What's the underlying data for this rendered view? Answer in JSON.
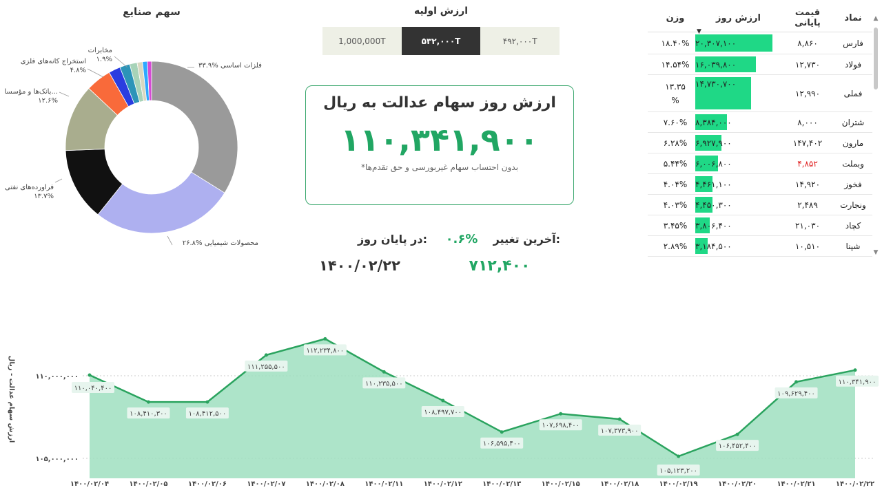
{
  "donut": {
    "title": "سهم صنایع",
    "labels": [
      {
        "pct": "۳۳.۹%",
        "name": "فلزات اساسی"
      },
      {
        "pct": "۲۶.۸%",
        "name": "محصولات شیمیایی"
      },
      {
        "pct": "۱۳.۷%",
        "name": "فراورده‌های نفتی"
      },
      {
        "pct": "۱۲.۶%",
        "name": "بانک‌ها و مؤسسا..."
      },
      {
        "pct": "۴.۸%",
        "name": "استخراج کانه‌های فلزی"
      },
      {
        "pct": "۱.۹%",
        "name": "مخابرات"
      }
    ]
  },
  "initial": {
    "title": "ارزش اولیه",
    "options": [
      "1,000,000T",
      "۵۳۲,۰۰۰T",
      "۴۹۲,۰۰۰T"
    ],
    "selected_index": 1
  },
  "card": {
    "title": "ارزش روز سهام عدالت به ریال",
    "value": "۱۱۰,۳۴۱,۹۰۰",
    "note": "*بدون احتساب سهام غیربورسی و حق تقدم‌ها"
  },
  "summary": {
    "end_label": "در پایان روز:",
    "end_date": "۱۴۰۰/۰۲/۲۲",
    "change_label": "آخرین تغییر:",
    "change_pct": "۰.۶%",
    "change_value": "۷۱۲,۴۰۰"
  },
  "table": {
    "headers": {
      "symbol": "نماد",
      "price": "قیمت پایانی",
      "value": "ارزش روز",
      "weight": "وزن"
    },
    "rows": [
      {
        "symbol": "فارس",
        "price": "۸,۸۶۰",
        "value": "۲۰,۳۰۷,۱۰۰",
        "weight": "۱۸.۴۰%",
        "ratio": 1.0,
        "price_down": false
      },
      {
        "symbol": "فولاد",
        "price": "۱۲,۷۳۰",
        "value": "۱۶,۰۳۹,۸۰۰",
        "weight": "۱۴.۵۴%",
        "ratio": 0.79,
        "price_down": false
      },
      {
        "symbol": "فملی",
        "price": "۱۲,۹۹۰",
        "value": "۱۴,۷۳۰,۷۰۰",
        "weight": "۱۳.۳۵ %",
        "ratio": 0.725,
        "price_down": false
      },
      {
        "symbol": "شتران",
        "price": "۸,۰۰۰",
        "value": "۸,۳۸۴,۰۰۰",
        "weight": "۷.۶۰%",
        "ratio": 0.413,
        "price_down": false
      },
      {
        "symbol": "مارون",
        "price": "۱۴۷,۴۰۲",
        "value": "۶,۹۲۷,۹۰۰",
        "weight": "۶.۲۸%",
        "ratio": 0.341,
        "price_down": false
      },
      {
        "symbol": "وبملت",
        "price": "۴,۸۵۲",
        "value": "۶,۰۰۶,۸۰۰",
        "weight": "۵.۴۴%",
        "ratio": 0.296,
        "price_down": true
      },
      {
        "symbol": "فخوز",
        "price": "۱۴,۹۲۰",
        "value": "۴,۴۶۱,۱۰۰",
        "weight": "۴.۰۴%",
        "ratio": 0.22,
        "price_down": false
      },
      {
        "symbol": "ونجارت",
        "price": "۲,۴۸۹",
        "value": "۴,۴۵۰,۳۰۰",
        "weight": "۴.۰۳%",
        "ratio": 0.219,
        "price_down": false
      },
      {
        "symbol": "کچاد",
        "price": "۲۱,۰۳۰",
        "value": "۳,۸۰۶,۴۰۰",
        "weight": "۳.۴۵%",
        "ratio": 0.187,
        "price_down": false
      },
      {
        "symbol": "شپنا",
        "price": "۱۰,۵۱۰",
        "value": "۳,۱۸۴,۵۰۰",
        "weight": "۲.۸۹%",
        "ratio": 0.157,
        "price_down": false
      }
    ]
  },
  "chart_data": [
    {
      "type": "pie",
      "title": "سهم صنایع",
      "categories": [
        "فلزات اساسی",
        "محصولات شیمیایی",
        "فراورده‌های نفتی",
        "بانک‌ها و مؤسسا...",
        "استخراج کانه‌های فلزی",
        "",
        "مخابرات",
        "",
        "",
        "",
        ""
      ],
      "values": [
        33.9,
        26.8,
        13.7,
        12.6,
        4.8,
        2.2,
        1.9,
        1.4,
        1.0,
        0.9,
        0.8
      ],
      "colors": [
        "#9a9a9a",
        "#aeb0f0",
        "#111111",
        "#a9ad8e",
        "#f96a3a",
        "#2a3de0",
        "#2c94b8",
        "#a7d3b8",
        "#d8d8c0",
        "#2ea8ff",
        "#d64ad4"
      ]
    },
    {
      "type": "area",
      "ylabel": "ارزش سهام عدالت - ریال",
      "xlabel": "",
      "x": [
        "۱۴۰۰/۰۲/۰۴",
        "۱۴۰۰/۰۲/۰۵",
        "۱۴۰۰/۰۲/۰۶",
        "۱۴۰۰/۰۲/۰۷",
        "۱۴۰۰/۰۲/۰۸",
        "۱۴۰۰/۰۲/۱۱",
        "۱۴۰۰/۰۲/۱۲",
        "۱۴۰۰/۰۲/۱۳",
        "۱۴۰۰/۰۲/۱۵",
        "۱۴۰۰/۰۲/۱۸",
        "۱۴۰۰/۰۲/۱۹",
        "۱۴۰۰/۰۲/۲۰",
        "۱۴۰۰/۰۲/۲۱",
        "۱۴۰۰/۰۲/۲۲"
      ],
      "values": [
        110040400,
        108410300,
        108412500,
        111255500,
        112234800,
        110235500,
        108497700,
        106595400,
        107698400,
        107373900,
        105123200,
        106452400,
        109629400,
        110341900
      ],
      "labels": [
        "۱۱۰,۰۴۰,۴۰۰",
        "۱۰۸,۴۱۰,۳۰۰",
        "۱۰۸,۴۱۲,۵۰۰",
        "۱۱۱,۲۵۵,۵۰۰",
        "۱۱۲,۲۳۴,۸۰۰",
        "۱۱۰,۲۳۵,۵۰۰",
        "۱۰۸,۴۹۷,۷۰۰",
        "۱۰۶,۵۹۵,۴۰۰",
        "۱۰۷,۶۹۸,۴۰۰",
        "۱۰۷,۳۷۳,۹۰۰",
        "۱۰۵,۱۲۳,۲۰۰",
        "۱۰۶,۴۵۲,۴۰۰",
        "۱۰۹,۶۲۹,۴۰۰",
        "۱۱۰,۳۴۱,۹۰۰"
      ],
      "yticks": [
        {
          "value": 110000000,
          "label": "۱۱۰,۰۰۰,۰۰۰"
        },
        {
          "value": 105000000,
          "label": "۱۰۵,۰۰۰,۰۰۰"
        }
      ],
      "line_color": "#2aa35e",
      "fill_color": "#9fdfc0"
    }
  ]
}
